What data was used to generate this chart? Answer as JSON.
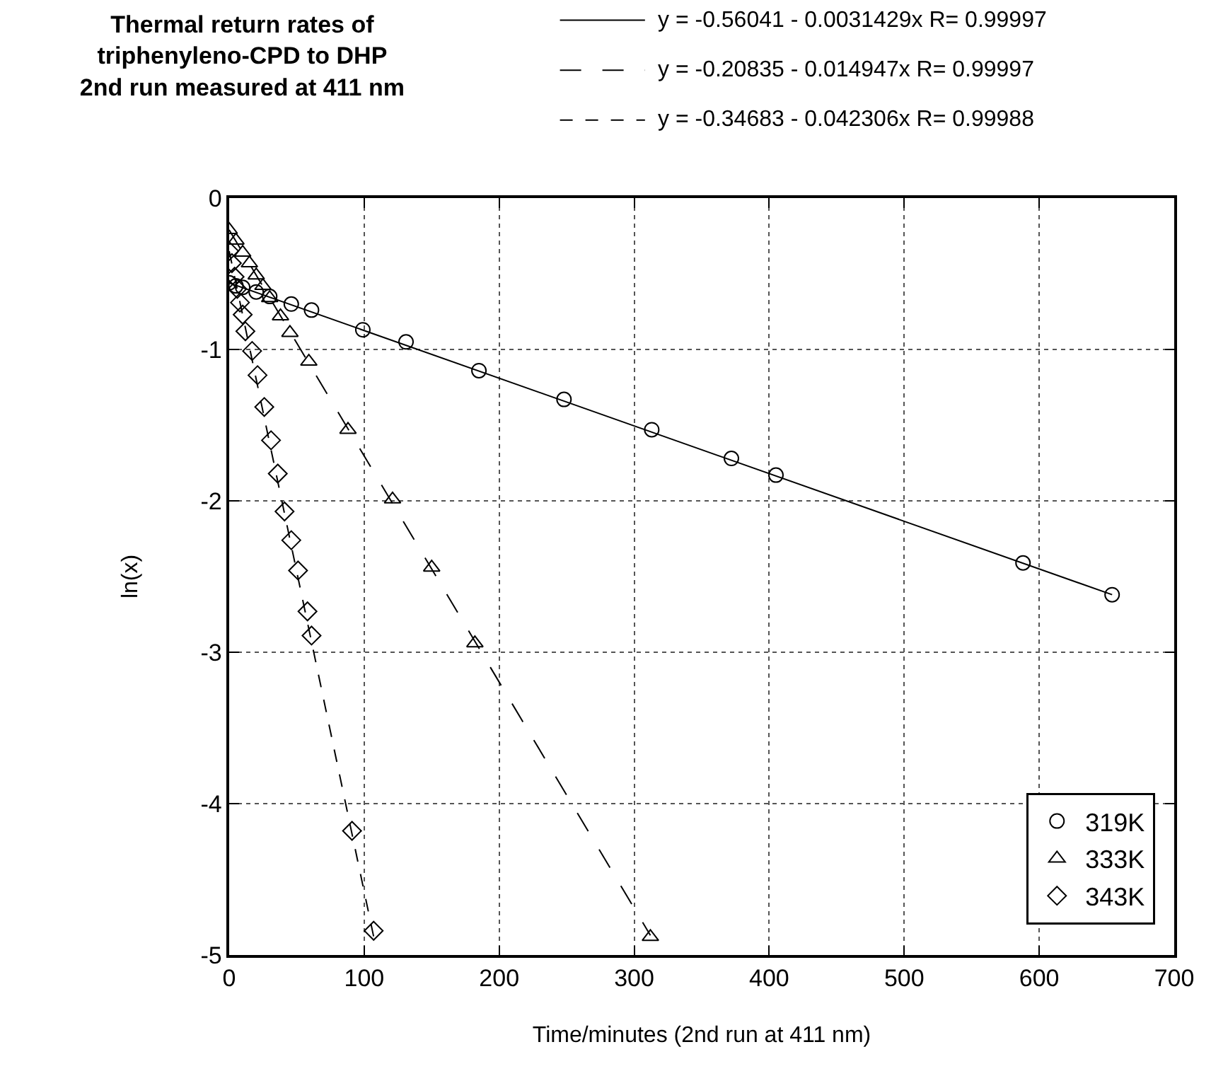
{
  "chart_data": {
    "type": "scatter",
    "title": "Thermal return rates of\ntriphenyleno-CPD to DHP\n2nd run measured at 411 nm",
    "xlabel": "Time/minutes (2nd run at 411 nm)",
    "ylabel": "ln(x)",
    "xlim": [
      0,
      700
    ],
    "xticks": [
      0,
      100,
      200,
      300,
      400,
      500,
      600,
      700
    ],
    "ylim": [
      -5,
      0
    ],
    "yticks": [
      -5,
      -4,
      -3,
      -2,
      -1,
      0
    ],
    "grid": true,
    "legend": "bottom right",
    "annotations": [
      "y = -0.56041 - 0.0031429x R= 0.99997",
      "y = -0.20835 - 0.014947x R= 0.99997",
      "y = -0.34683 - 0.042306x R= 0.99988"
    ],
    "series": [
      {
        "name": "319K",
        "marker": "circle",
        "color": "#000000",
        "x": [
          0,
          5,
          10,
          20,
          30,
          46,
          61,
          99,
          131,
          185,
          248,
          313,
          372,
          405,
          588,
          654
        ],
        "values": [
          -0.56,
          -0.58,
          -0.59,
          -0.62,
          -0.65,
          -0.7,
          -0.74,
          -0.87,
          -0.95,
          -1.14,
          -1.33,
          -1.53,
          -1.72,
          -1.83,
          -2.41,
          -2.62
        ]
      },
      {
        "name": "333K",
        "marker": "triangle",
        "color": "#000000",
        "x": [
          0,
          5,
          10,
          15,
          20,
          25,
          30,
          38,
          45,
          59,
          88,
          121,
          150,
          182,
          312
        ],
        "values": [
          -0.21,
          -0.28,
          -0.36,
          -0.43,
          -0.51,
          -0.58,
          -0.66,
          -0.78,
          -0.89,
          -1.08,
          -1.53,
          -1.99,
          -2.44,
          -2.94,
          -4.88
        ]
      },
      {
        "name": "343K",
        "marker": "diamond",
        "color": "#000000",
        "x": [
          0,
          2,
          4,
          6,
          8,
          10,
          12,
          17,
          21,
          26,
          31,
          36,
          41,
          46,
          51,
          58,
          61,
          91,
          107
        ],
        "values": [
          -0.35,
          -0.43,
          -0.52,
          -0.6,
          -0.69,
          -0.77,
          -0.88,
          -1.01,
          -1.17,
          -1.38,
          -1.6,
          -1.82,
          -2.07,
          -2.26,
          -2.46,
          -2.73,
          -2.89,
          -4.18,
          -4.84
        ]
      },
      {
        "type": "line",
        "line_style": "solid",
        "color": "#000000",
        "x": [
          0,
          654
        ],
        "values": [
          -0.56,
          -2.62
        ]
      },
      {
        "type": "line",
        "line_style": "longdash",
        "color": "#000000",
        "x": [
          0,
          312
        ],
        "values": [
          -0.21,
          -4.87
        ]
      },
      {
        "type": "line",
        "line_style": "dashed",
        "color": "#000000",
        "x": [
          0,
          108
        ],
        "values": [
          -0.35,
          -4.92
        ]
      }
    ]
  }
}
